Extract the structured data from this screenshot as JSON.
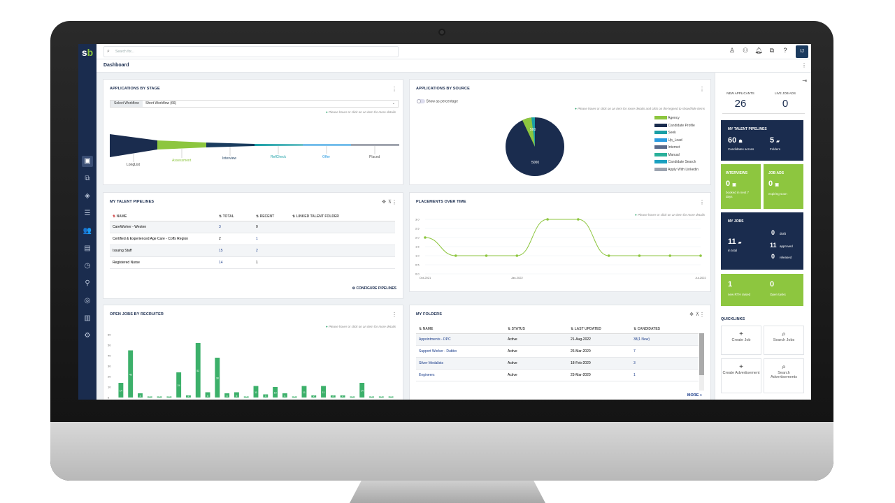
{
  "app": {
    "logo_s": "s",
    "logo_b": "b",
    "page_title": "Dashboard",
    "user_initials": "IJ"
  },
  "search": {
    "placeholder": "Search for..."
  },
  "colors": {
    "navy": "#1a2c4e",
    "lime": "#8dc63f",
    "teal": "#1a9fa6",
    "blue": "#2a9be0"
  },
  "apps_by_stage": {
    "title": "APPLICATIONS BY STAGE",
    "workflow_label": "Select Workflow",
    "workflow_value": "Short Workflow (66)",
    "hint": "Please hover or click on an item for more details",
    "stages": [
      "LongList",
      "Assessment",
      "Interview",
      "RefCheck",
      "Offer",
      "Placed"
    ]
  },
  "apps_by_source": {
    "title": "APPLICATIONS BY SOURCE",
    "toggle_label": "Show as percentage",
    "hint": "Please hover or click on an item for more details and click on the legend to show/hide items",
    "pie_value": "5000",
    "pie_side_value": "500",
    "legend": [
      "Agency",
      "Candidate Profile",
      "Seek",
      "Up_Load",
      "Internet",
      "Manual",
      "Candidate Search",
      "Apply With Linkedin"
    ]
  },
  "pipelines": {
    "title": "MY TALENT PIPELINES",
    "headers": [
      "NAME",
      "TOTAL",
      "RECENT",
      "LINKED TALENT FOLDER"
    ],
    "rows": [
      {
        "name": "CareWorker - Westen",
        "total": "3",
        "recent": "0"
      },
      {
        "name": "Certified & Experienced Age Care - Coffs Region",
        "total": "2",
        "recent": "1"
      },
      {
        "name": "Issuing Staff",
        "total": "15",
        "recent": "2"
      },
      {
        "name": "Registered Nurse",
        "total": "14",
        "recent": "1"
      }
    ],
    "configure": "CONFIGURE PIPELINES"
  },
  "placements": {
    "title": "PLACEMENTS OVER TIME",
    "hint": "Please hover or click on an item for more details",
    "chart_data": {
      "type": "line",
      "x": [
        "Oct-2021",
        "Nov-2021",
        "Dec-2021",
        "Jan-2022",
        "Feb-2022",
        "Mar-2022",
        "Apr-2022",
        "May-2022",
        "Jun-2022",
        "Jul-2022"
      ],
      "y": [
        2.0,
        1.0,
        1.0,
        1.0,
        3.0,
        3.0,
        1.0,
        1.0,
        1.0,
        1.0
      ],
      "ylim": [
        0,
        3.0
      ],
      "yticks": [
        "3.0",
        "2.5",
        "2.0",
        "1.5",
        "1.0",
        "0.5",
        "0.0"
      ],
      "xtick_labels": [
        "Oct-2021",
        "Jan-2022",
        "Jul-2022"
      ],
      "color": "#8dc63f"
    }
  },
  "open_jobs": {
    "title": "OPEN JOBS BY RECRUITER",
    "hint": "Please hover or click on an item for more details",
    "chart_data": {
      "type": "bar",
      "values": [
        14,
        45,
        4,
        1,
        1,
        1,
        24,
        2,
        52,
        5,
        38,
        4,
        5,
        1,
        11,
        3,
        10,
        4,
        1,
        11,
        2,
        11,
        2,
        2,
        1,
        14,
        1,
        1,
        1
      ],
      "ylim": [
        0,
        60
      ],
      "yticks": [
        "60",
        "50",
        "40",
        "30",
        "20",
        "10",
        "0"
      ]
    }
  },
  "folders": {
    "title": "MY FOLDERS",
    "headers": [
      "NAME",
      "STATUS",
      "LAST UPDATED",
      "CANDIDATES"
    ],
    "rows": [
      {
        "name": "Appointments - DPC",
        "status": "Active",
        "updated": "21-Aug-2022",
        "candidates": "38(1 New)"
      },
      {
        "name": "Support Worker - Dubbo",
        "status": "Active",
        "updated": "26-Mar-2020",
        "candidates": "7"
      },
      {
        "name": "Silver Medalists",
        "status": "Active",
        "updated": "18-Feb-2020",
        "candidates": "3"
      },
      {
        "name": "Engineers",
        "status": "Active",
        "updated": "23-Mar-2020",
        "candidates": "1"
      }
    ],
    "more": "MORE"
  },
  "right_panel": {
    "new_applicants_label": "NEW APPLICANTS",
    "new_applicants": "26",
    "live_ads_label": "LIVE JOB ADS",
    "live_ads": "0",
    "pipelines_title": "MY TALENT PIPELINES",
    "pipelines_count": "60",
    "pipelines_sub": "Candidates across",
    "folders_count": "5",
    "folders_sub": "Folders",
    "interviews_title": "INTERVIEWS",
    "interviews_count": "0",
    "interviews_sub": "booked in next 7 days",
    "jobads_title": "JOB ADS",
    "jobads_count": "0",
    "jobads_sub": "expiring soon",
    "myjobs_title": "MY JOBS",
    "myjobs_total": "11",
    "myjobs_total_sub": "in total",
    "draft": "0",
    "draft_label": "draft",
    "approved": "11",
    "approved_label": "approved",
    "released": "0",
    "released_label": "released",
    "rth": "1",
    "rth_label": "new RTH raised",
    "tasks": "0",
    "tasks_label": "Open tasks",
    "quicklinks_title": "QUICKLINKS",
    "quicklinks": [
      "Create Job",
      "Search Jobs",
      "Create Advertisement",
      "Search Advertisements"
    ]
  }
}
